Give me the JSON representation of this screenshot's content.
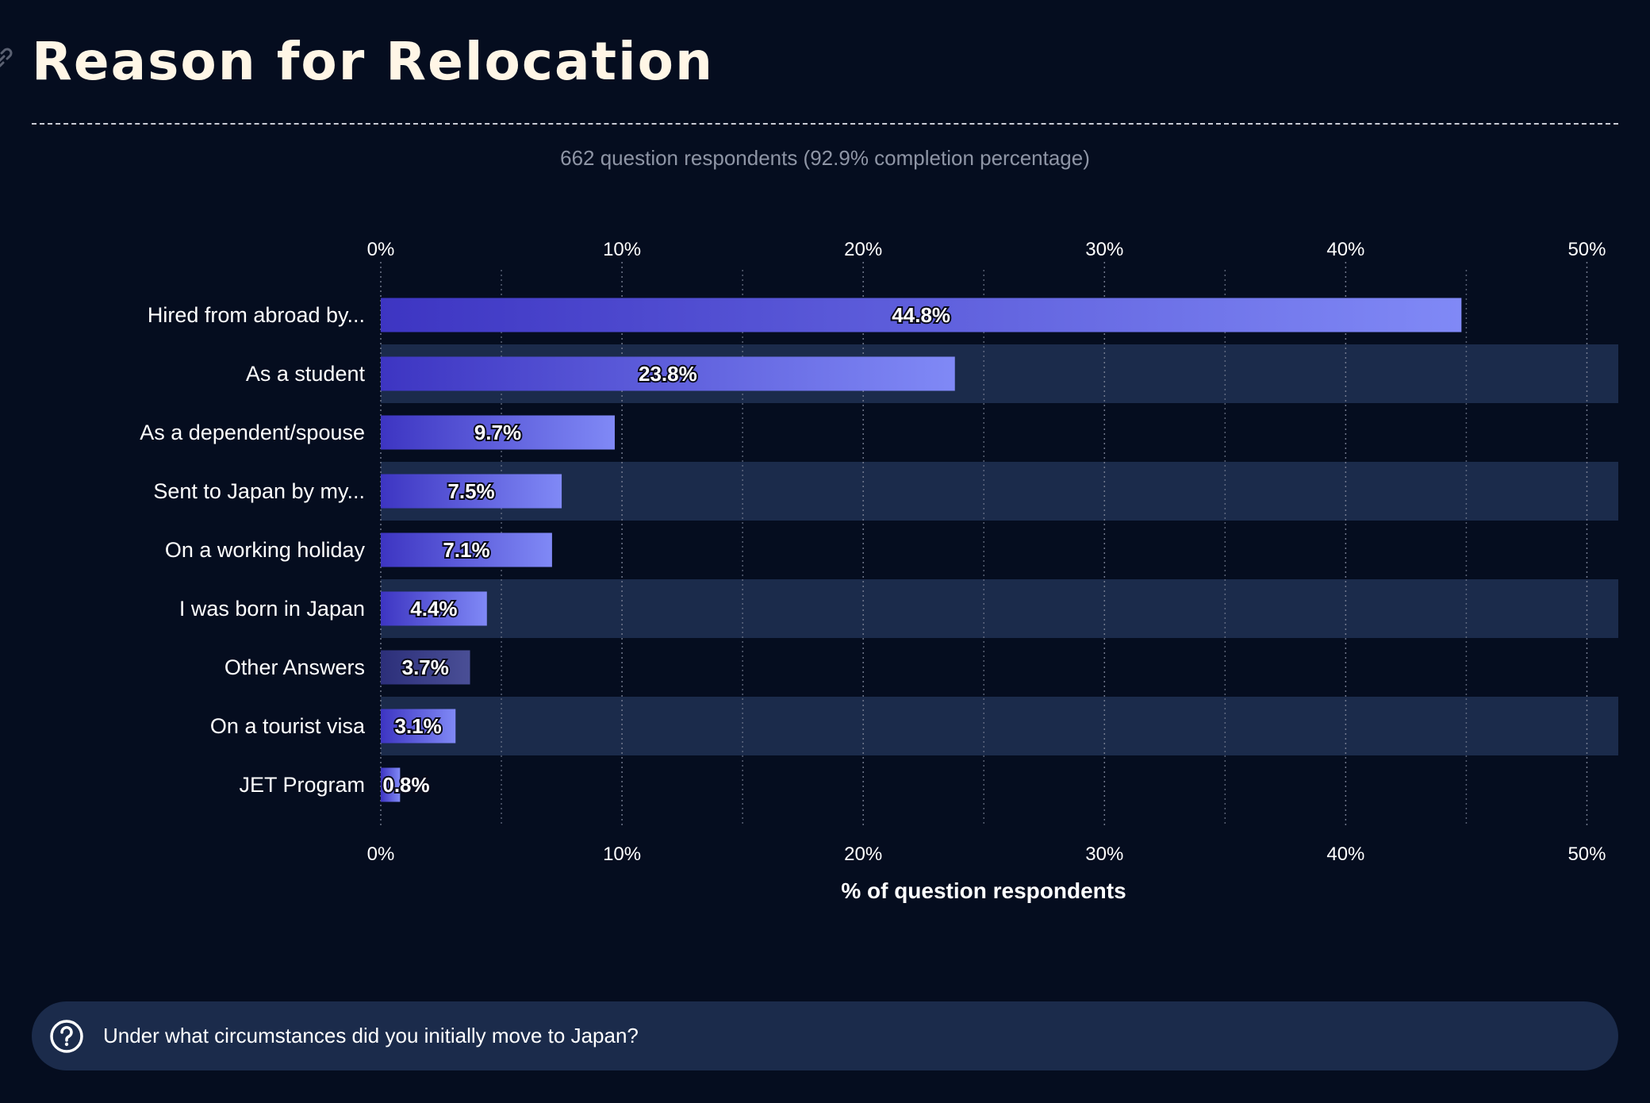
{
  "header": {
    "title": "Reason for Relocation",
    "subtitle": "662 question respondents (92.9% completion percentage)"
  },
  "question": {
    "text": "Under what circumstances did you initially move to Japan?",
    "icon": "question-circle-icon"
  },
  "colors": {
    "background": "#050d1f",
    "band": "#1b2b4b",
    "bar_start": "#3d35c2",
    "bar_end": "#8089f6",
    "other_bar_start": "#2c2f7a",
    "other_bar_end": "#4a4f96"
  },
  "chart_data": {
    "type": "bar",
    "orientation": "horizontal",
    "categories": [
      "Hired from abroad by...",
      "As a student",
      "As a dependent/spouse",
      "Sent to Japan by my...",
      "On a working holiday",
      "I was born in Japan",
      "Other Answers",
      "On a tourist visa",
      "JET Program"
    ],
    "values": [
      44.8,
      23.8,
      9.7,
      7.5,
      7.1,
      4.4,
      3.7,
      3.1,
      0.8
    ],
    "data_labels": [
      "44.8%",
      "23.8%",
      "9.7%",
      "7.5%",
      "7.1%",
      "4.4%",
      "3.7%",
      "3.1%",
      "0.8%"
    ],
    "xlabel": "% of question respondents",
    "xlim": [
      0,
      51.3
    ],
    "ticks": [
      0,
      10,
      20,
      30,
      40,
      50
    ],
    "tick_labels": [
      "0%",
      "10%",
      "20%",
      "30%",
      "40%",
      "50%"
    ],
    "grid": true
  }
}
